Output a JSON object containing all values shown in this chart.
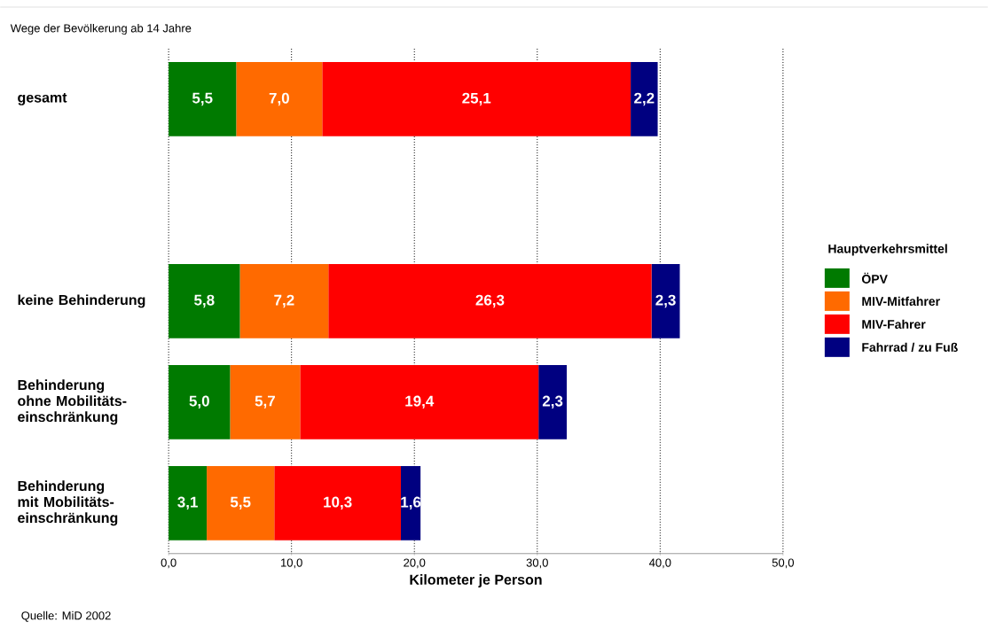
{
  "chart_data": {
    "type": "bar",
    "orientation": "horizontal",
    "stacked": true,
    "title": "Wege der Bevölkerung ab 14 Jahre",
    "xlabel": "Kilometer je Person",
    "legend_title": "Hauptverkehrsmittel",
    "annotations": [
      "Quelle: MiD 2002"
    ],
    "categories": [
      "gesamt",
      null,
      "keine Behinderung",
      "Behinderung ohne Mobilitäts-einschränkung",
      "Behinderung mit Mobilitäts-einschränkung"
    ],
    "series": [
      {
        "name": "ÖPV",
        "color": "#007a00",
        "values": [
          5.5,
          null,
          5.8,
          5.0,
          3.1
        ],
        "value_labels": [
          "5,5",
          null,
          "5,8",
          "5,0",
          "3,1"
        ]
      },
      {
        "name": "MIV-Mitfahrer",
        "color": "#ff6a00",
        "values": [
          7.0,
          null,
          7.2,
          5.7,
          5.5
        ],
        "value_labels": [
          "7,0",
          null,
          "7,2",
          "5,7",
          "5,5"
        ]
      },
      {
        "name": "MIV-Fahrer",
        "color": "#ff0000",
        "values": [
          25.1,
          null,
          26.3,
          19.4,
          10.3
        ],
        "value_labels": [
          "25,1",
          null,
          "26,3",
          "19,4",
          "10,3"
        ]
      },
      {
        "name": "Fahrrad / zu Fuß",
        "color": "#000080",
        "values": [
          2.2,
          null,
          2.3,
          2.3,
          1.6
        ],
        "value_labels": [
          "2,2",
          null,
          "2,3",
          "2,3",
          "1,6"
        ]
      }
    ],
    "xlim": [
      0,
      50
    ],
    "xticks": [
      {
        "value": 0,
        "label": "0,0"
      },
      {
        "value": 10,
        "label": "10,0"
      },
      {
        "value": 20,
        "label": "20,0"
      },
      {
        "value": 30,
        "label": "30,0"
      },
      {
        "value": 40,
        "label": "40,0"
      },
      {
        "value": 50,
        "label": "50,0"
      }
    ],
    "grid": "x",
    "legend": "right"
  }
}
